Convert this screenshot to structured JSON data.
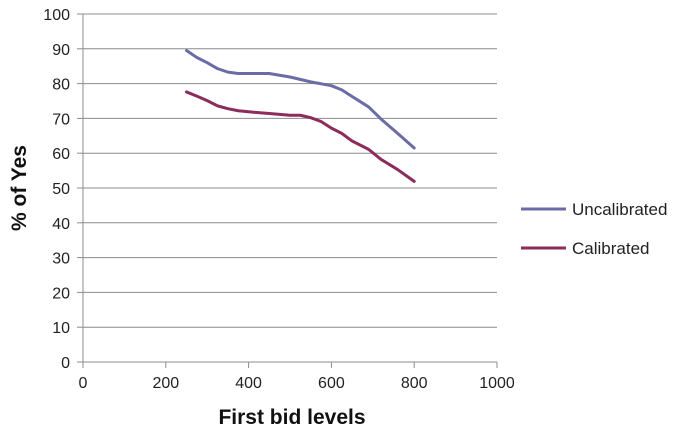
{
  "chart_data": {
    "type": "line",
    "title": "",
    "xlabel": "First bid levels",
    "ylabel": "% of Yes",
    "xlim": [
      0,
      1000
    ],
    "ylim": [
      0,
      100
    ],
    "x_ticks": [
      0,
      200,
      400,
      600,
      800,
      1000
    ],
    "y_ticks": [
      0,
      10,
      20,
      30,
      40,
      50,
      60,
      70,
      80,
      90,
      100
    ],
    "grid": "horizontal",
    "legend": "right",
    "series": [
      {
        "name": "Uncalibrated",
        "color": "#6B6BA6",
        "x": [
          250,
          275,
          300,
          325,
          350,
          375,
          400,
          450,
          500,
          550,
          600,
          625,
          650,
          690,
          720,
          760,
          800
        ],
        "y": [
          89.5,
          87.5,
          86,
          84.3,
          83.3,
          82.9,
          82.9,
          82.9,
          81.9,
          80.5,
          79.4,
          78.2,
          76.3,
          73.3,
          69.8,
          65.7,
          61.5
        ]
      },
      {
        "name": "Calibrated",
        "color": "#8B2C5A",
        "x": [
          250,
          275,
          300,
          325,
          350,
          375,
          400,
          450,
          500,
          525,
          550,
          575,
          600,
          625,
          650,
          690,
          720,
          760,
          800
        ],
        "y": [
          77.6,
          76.4,
          75.1,
          73.6,
          72.8,
          72.2,
          71.9,
          71.4,
          70.9,
          70.9,
          70.2,
          69.1,
          67.2,
          65.7,
          63.5,
          61.1,
          58.2,
          55.3,
          51.9
        ]
      }
    ]
  }
}
